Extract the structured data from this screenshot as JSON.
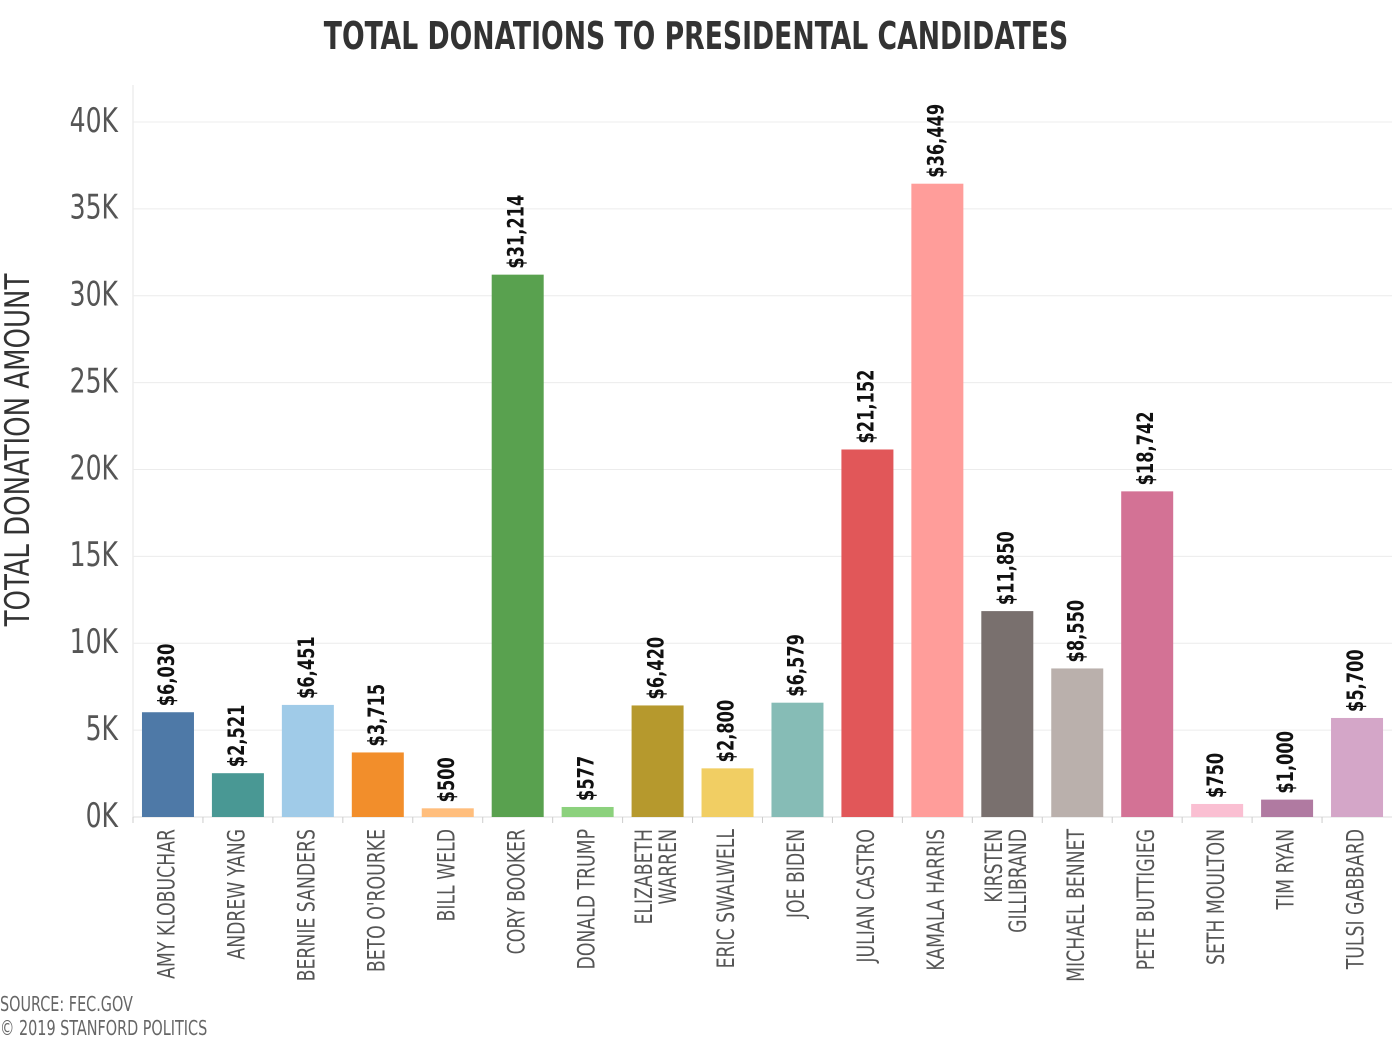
{
  "chart_data": {
    "type": "bar",
    "title": "TOTAL DONATIONS TO PRESIDENTAL CANDIDATES",
    "ylabel": "TOTAL DONATION AMOUNT",
    "xlabel": "",
    "ylim": [
      0,
      40000
    ],
    "yticks": [
      0,
      5000,
      10000,
      15000,
      20000,
      25000,
      30000,
      35000,
      40000
    ],
    "ytick_labels": [
      "0K",
      "5K",
      "10K",
      "15K",
      "20K",
      "25K",
      "30K",
      "35K",
      "40K"
    ],
    "grid": true,
    "categories": [
      [
        "AMY KLOBUCHAR"
      ],
      [
        "ANDREW YANG"
      ],
      [
        "BERNIE SANDERS"
      ],
      [
        "BETO O'ROURKE"
      ],
      [
        "BILL WELD"
      ],
      [
        "CORY BOOKER"
      ],
      [
        "DONALD TRUMP"
      ],
      [
        "ELIZABETH",
        "WARREN"
      ],
      [
        "ERIC SWALWELL"
      ],
      [
        "JOE BIDEN"
      ],
      [
        "JULIAN CASTRO"
      ],
      [
        "KAMALA HARRIS"
      ],
      [
        "KIRSTEN",
        "GILLIBRAND"
      ],
      [
        "MICHAEL BENNET"
      ],
      [
        "PETE BUTTIGIEG"
      ],
      [
        "SETH MOULTON"
      ],
      [
        "TIM RYAN"
      ],
      [
        "TULSI GABBARD"
      ]
    ],
    "values": [
      6030,
      2521,
      6451,
      3715,
      500,
      31214,
      577,
      6420,
      2800,
      6579,
      21152,
      36449,
      11850,
      8550,
      18742,
      750,
      1000,
      5700
    ],
    "value_labels": [
      "$6,030",
      "$2,521",
      "$6,451",
      "$3,715",
      "$500",
      "$31,214",
      "$577",
      "$6,420",
      "$2,800",
      "$6,579",
      "$21,152",
      "$36,449",
      "$11,850",
      "$8,550",
      "$18,742",
      "$750",
      "$1,000",
      "$5,700"
    ],
    "colors": [
      "#4e79a7",
      "#499894",
      "#a0cbe8",
      "#f28e2b",
      "#ffbe7d",
      "#59a14f",
      "#8cd17d",
      "#b6992d",
      "#f1ce63",
      "#86bcb6",
      "#e15759",
      "#ff9d9a",
      "#79706e",
      "#bab0ac",
      "#d37295",
      "#fabfd2",
      "#b07aa1",
      "#d4a6c8"
    ]
  },
  "footer": {
    "source": "SOURCE: FEC.GOV",
    "copyright": "© 2019 STANFORD POLITICS"
  }
}
